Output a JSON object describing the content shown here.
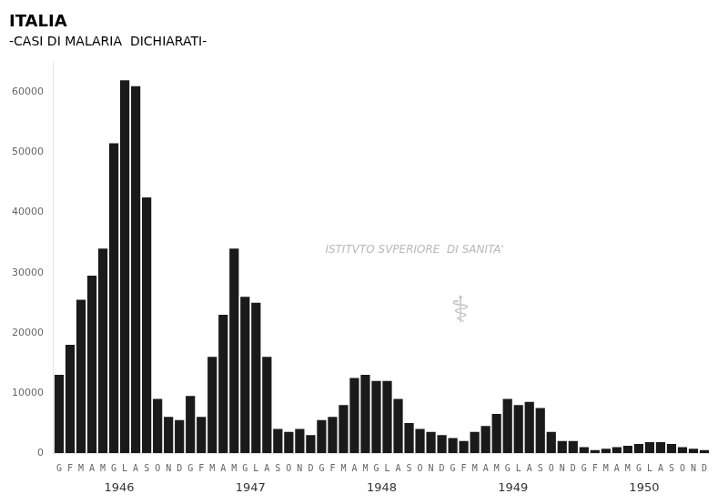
{
  "chart_data": {
    "type": "bar",
    "title": "ITALIA",
    "subtitle": "-CASI DI MALARIA  DICHIARATI-",
    "categories": [
      "G",
      "F",
      "M",
      "A",
      "M",
      "G",
      "L",
      "A",
      "S",
      "O",
      "N",
      "D",
      "G",
      "F",
      "M",
      "A",
      "M",
      "G",
      "L",
      "A",
      "S",
      "O",
      "N",
      "D",
      "G",
      "F",
      "M",
      "A",
      "M",
      "G",
      "L",
      "A",
      "S",
      "O",
      "N",
      "D",
      "G",
      "F",
      "M",
      "A",
      "M",
      "G",
      "L",
      "A",
      "S",
      "O",
      "N",
      "D",
      "G",
      "F",
      "M",
      "A",
      "M",
      "G",
      "L",
      "A",
      "S",
      "O",
      "N",
      "D"
    ],
    "years": [
      "1946",
      "1947",
      "1948",
      "1949",
      "1950"
    ],
    "values": [
      13000,
      18000,
      25500,
      29500,
      34000,
      51500,
      62000,
      61000,
      42500,
      9000,
      6000,
      5500,
      9500,
      6000,
      16000,
      23000,
      34000,
      26000,
      25000,
      16000,
      4000,
      3500,
      4000,
      3000,
      5500,
      6000,
      8000,
      12500,
      13000,
      12000,
      12000,
      9000,
      5000,
      4000,
      3500,
      3000,
      2500,
      2000,
      3500,
      4500,
      6500,
      9000,
      8000,
      8500,
      7500,
      3500,
      2000,
      2000,
      1000,
      500,
      700,
      1000,
      1200,
      1500,
      1800,
      1800,
      1500,
      1000,
      700,
      500
    ],
    "color": "#1a1a1a",
    "ylim": [
      0,
      65000
    ],
    "yticks": [
      0,
      10000,
      20000,
      30000,
      40000,
      50000,
      60000
    ],
    "grid": false,
    "annotations": [
      "ISTITVTO SVPERIORE  DI SANITA'",
      "⚕"
    ]
  }
}
